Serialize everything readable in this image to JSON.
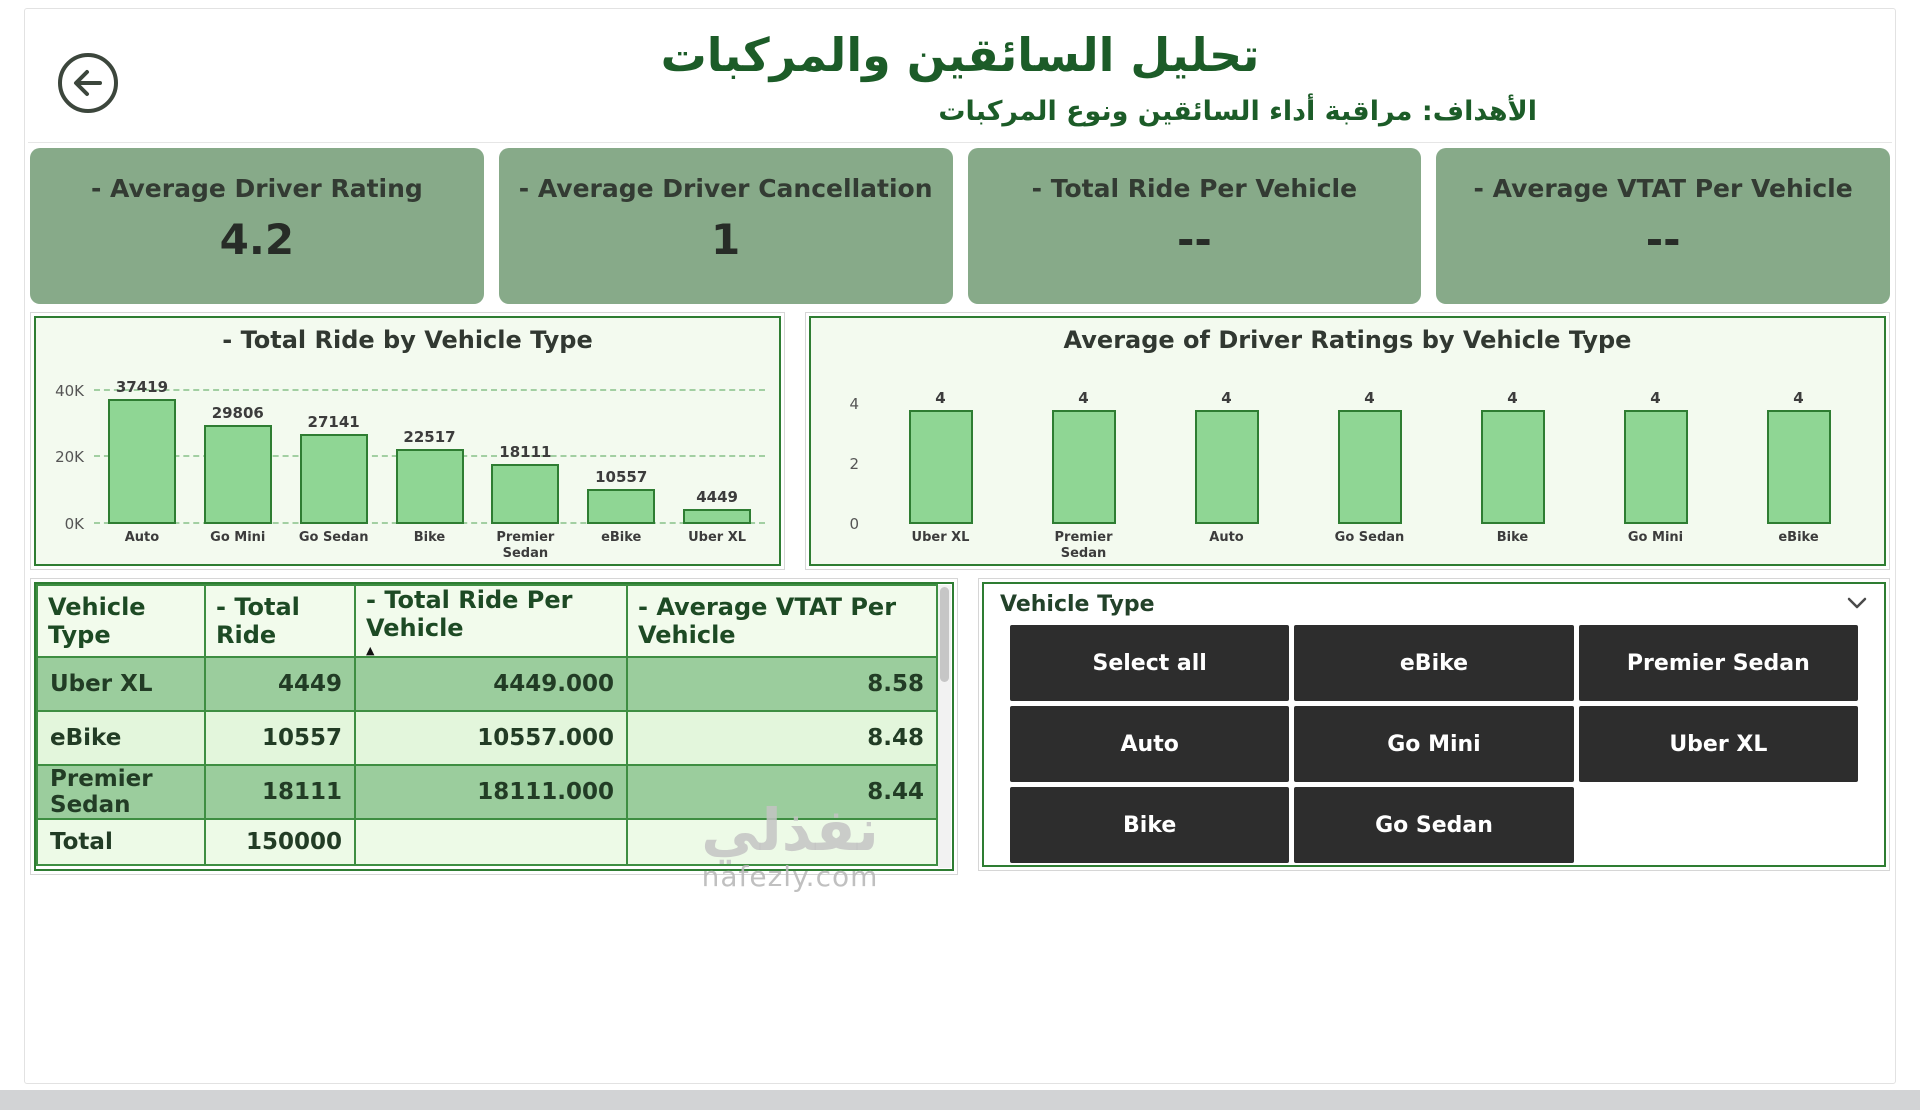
{
  "header": {
    "title": "تحليل السائقين والمركبات",
    "subtitle": "الأهداف: مراقبة أداء السائقين ونوع المركبات"
  },
  "kpis": [
    {
      "label": "- Average Driver Rating",
      "value": "4.2"
    },
    {
      "label": "- Average Driver Cancellation",
      "value": "1"
    },
    {
      "label": "- Total Ride Per Vehicle",
      "value": "--"
    },
    {
      "label": "- Average VTAT Per Vehicle",
      "value": "--"
    }
  ],
  "chart_data": [
    {
      "type": "bar",
      "title": "- Total Ride by Vehicle Type",
      "categories": [
        "Auto",
        "Go Mini",
        "Go Sedan",
        "Bike",
        "Premier Sedan",
        "eBike",
        "Uber XL"
      ],
      "values": [
        37419,
        29806,
        27141,
        22517,
        18111,
        10557,
        4449
      ],
      "xlabel": "",
      "ylabel": "",
      "ylim": [
        0,
        45000
      ],
      "yticks": [
        {
          "value": 0,
          "label": "0K"
        },
        {
          "value": 20000,
          "label": "20K"
        },
        {
          "value": 40000,
          "label": "40K"
        }
      ],
      "grid": true,
      "legend": "none"
    },
    {
      "type": "bar",
      "title": "Average of Driver Ratings by Vehicle Type",
      "categories": [
        "Uber XL",
        "Premier Sedan",
        "Auto",
        "Go Sedan",
        "Bike",
        "Go Mini",
        "eBike"
      ],
      "values": [
        4,
        4,
        4,
        4,
        4,
        4,
        4
      ],
      "xlabel": "",
      "ylabel": "",
      "ylim": [
        0,
        4.5
      ],
      "yticks": [
        {
          "value": 0,
          "label": "0"
        },
        {
          "value": 2,
          "label": "2"
        },
        {
          "value": 4,
          "label": "4"
        }
      ],
      "grid": false,
      "legend": "none"
    }
  ],
  "table": {
    "columns": [
      "Vehicle Type",
      "- Total Ride",
      "- Total Ride Per Vehicle",
      "- Average VTAT Per Vehicle"
    ],
    "sorted_column": "- Total Ride Per Vehicle",
    "sort_direction": "ascending",
    "rows": [
      {
        "vehicle": "Uber XL",
        "total_ride": "4449",
        "per_vehicle": "4449.000",
        "vtat": "8.58"
      },
      {
        "vehicle": "eBike",
        "total_ride": "10557",
        "per_vehicle": "10557.000",
        "vtat": "8.48"
      },
      {
        "vehicle": "Premier Sedan",
        "total_ride": "18111",
        "per_vehicle": "18111.000",
        "vtat": "8.44"
      }
    ],
    "total_row": {
      "vehicle": "Total",
      "total_ride": "150000",
      "per_vehicle": "",
      "vtat": ""
    }
  },
  "slicer": {
    "title": "Vehicle Type",
    "options": [
      "Select all",
      "eBike",
      "Premier Sedan",
      "Auto",
      "Go Mini",
      "Uber XL",
      "Bike",
      "Go Sedan"
    ]
  },
  "watermark": {
    "arabic": "نفذلي",
    "domain": "nafezly.com"
  },
  "colors": {
    "accent_green_dark": "#2e7d32",
    "title_green": "#1c5c28",
    "kpi_bg": "#87aa89",
    "panel_bg": "#f3faef",
    "bar_fill": "#8fd694",
    "table_header_bg": "#f2fbec",
    "table_row_dark": "#9bcd9d",
    "table_row_light": "#e3f6dc",
    "table_total_bg": "#edfae7",
    "table_border": "#3e8e42",
    "slicer_button_bg": "#2d2d2d"
  }
}
